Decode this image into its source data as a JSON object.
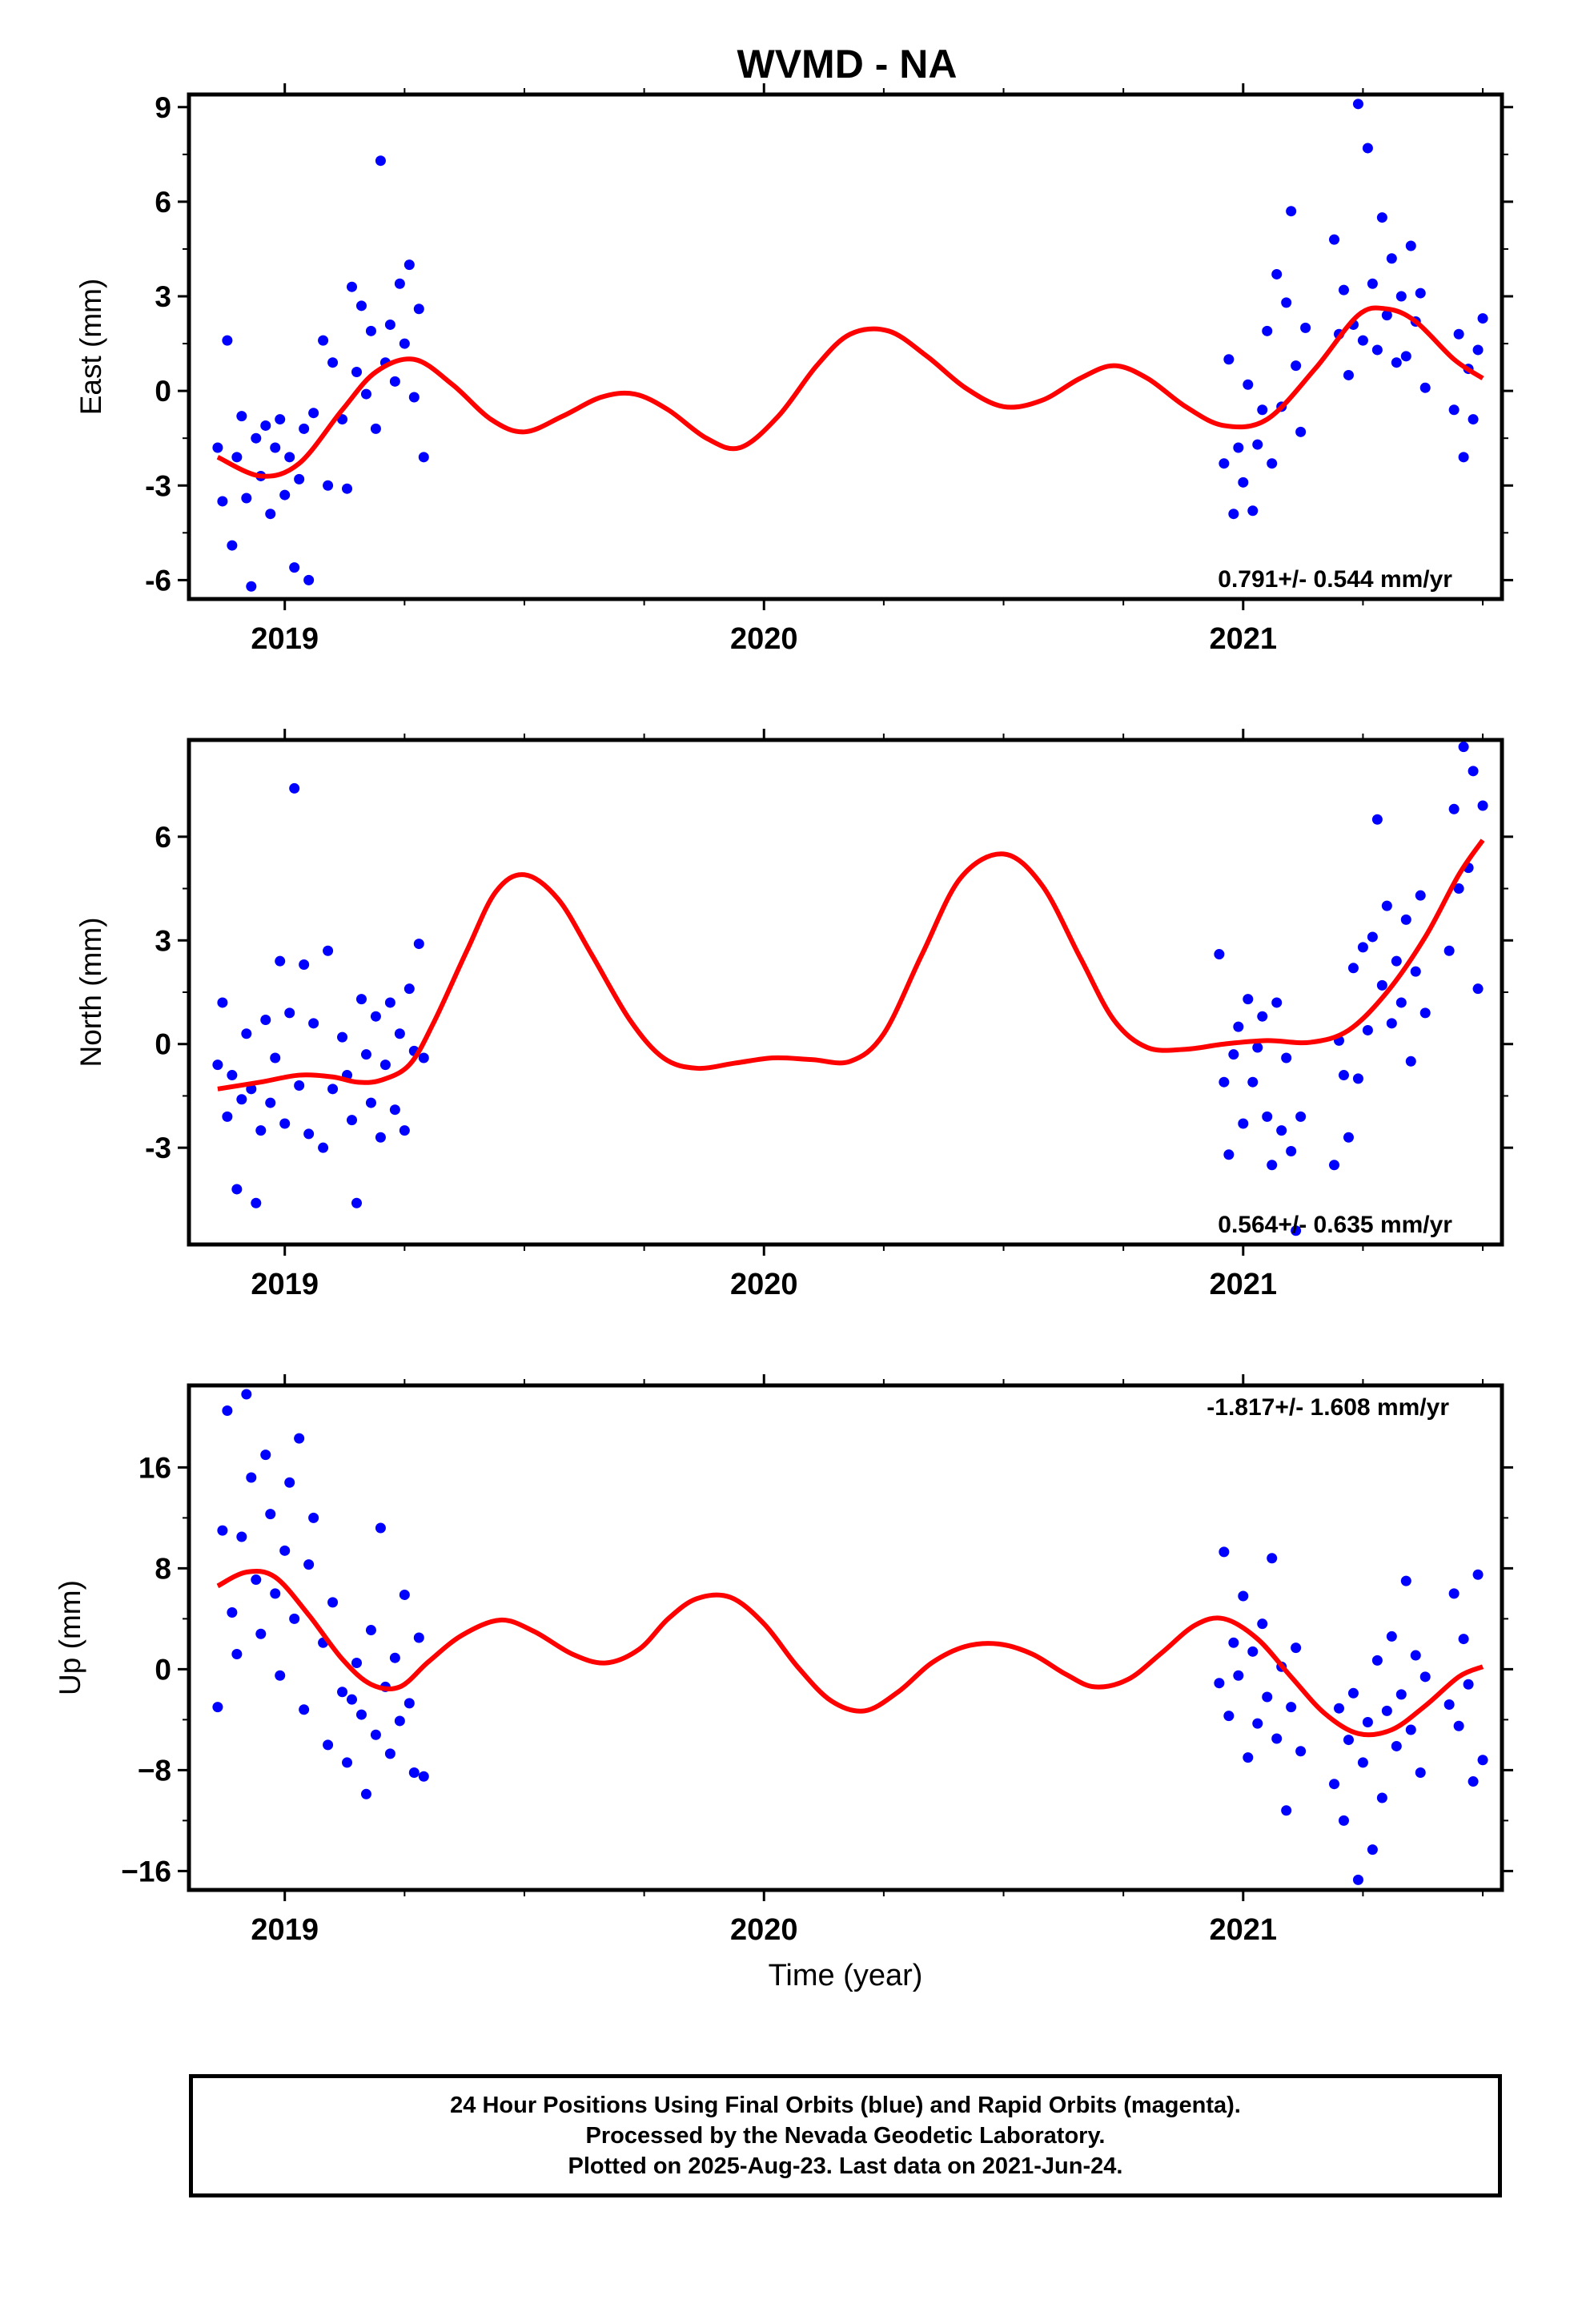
{
  "title": "WVMD - NA",
  "footer": {
    "line1": "24 Hour Positions Using Final Orbits (blue) and Rapid Orbits (magenta).",
    "line2": "Processed by the Nevada Geodetic Laboratory.",
    "line3": "Plotted on 2025-Aug-23. Last data on 2021-Jun-24."
  },
  "colors": {
    "points": "#0000ff",
    "fit": "#ff0000",
    "axes": "#000000"
  },
  "chart_data": [
    {
      "type": "scatter",
      "ylabel": "East (mm)",
      "xlabel": "",
      "rate_label": "0.791+/- 0.544 mm/yr",
      "rate_position": "bottom-right",
      "xlim": [
        2018.8,
        2021.54
      ],
      "ylim": [
        -6.6,
        9.4
      ],
      "xticks": [
        2019,
        2020,
        2021
      ],
      "xtick_labels": [
        "2019",
        "2020",
        "2021"
      ],
      "yticks": [
        -6,
        -3,
        0,
        3,
        6,
        9
      ],
      "ytick_labels": [
        "-6",
        "-3",
        "0",
        "3",
        "6",
        "9"
      ],
      "series": [
        {
          "kind": "points",
          "x": [
            2018.86,
            2018.87,
            2018.88,
            2018.89,
            2018.9,
            2018.91,
            2018.92,
            2018.93,
            2018.94,
            2018.95,
            2018.96,
            2018.97,
            2018.98,
            2018.99,
            2019.0,
            2019.01,
            2019.02,
            2019.03,
            2019.04,
            2019.05,
            2019.06,
            2019.08,
            2019.09,
            2019.1,
            2019.12,
            2019.13,
            2019.14,
            2019.15,
            2019.16,
            2019.17,
            2019.18,
            2019.19,
            2019.2,
            2019.21,
            2019.22,
            2019.23,
            2019.24,
            2019.25,
            2019.26,
            2019.27,
            2019.28,
            2019.29,
            2020.96,
            2020.97,
            2020.98,
            2020.99,
            2021.0,
            2021.01,
            2021.02,
            2021.03,
            2021.04,
            2021.05,
            2021.06,
            2021.07,
            2021.08,
            2021.09,
            2021.1,
            2021.11,
            2021.12,
            2021.13,
            2021.19,
            2021.2,
            2021.21,
            2021.22,
            2021.23,
            2021.24,
            2021.25,
            2021.26,
            2021.27,
            2021.28,
            2021.29,
            2021.3,
            2021.31,
            2021.32,
            2021.33,
            2021.34,
            2021.35,
            2021.36,
            2021.37,
            2021.38,
            2021.44,
            2021.45,
            2021.46,
            2021.47,
            2021.48,
            2021.49,
            2021.5
          ],
          "y": [
            -1.8,
            -3.5,
            1.6,
            -4.9,
            -2.1,
            -0.8,
            -3.4,
            -6.2,
            -1.5,
            -2.7,
            -1.1,
            -3.9,
            -1.8,
            -0.9,
            -3.3,
            -2.1,
            -5.6,
            -2.8,
            -1.2,
            -6.0,
            -0.7,
            1.6,
            -3.0,
            0.9,
            -0.9,
            -3.1,
            3.3,
            0.6,
            2.7,
            -0.1,
            1.9,
            -1.2,
            7.3,
            0.9,
            2.1,
            0.3,
            3.4,
            1.5,
            4.0,
            -0.2,
            2.6,
            -2.1,
            -2.3,
            1.0,
            -3.9,
            -1.8,
            -2.9,
            0.2,
            -3.8,
            -1.7,
            -0.6,
            1.9,
            -2.3,
            3.7,
            -0.5,
            2.8,
            5.7,
            0.8,
            -1.3,
            2.0,
            4.8,
            1.8,
            3.2,
            0.5,
            2.1,
            9.1,
            1.6,
            7.7,
            3.4,
            1.3,
            5.5,
            2.4,
            4.2,
            0.9,
            3.0,
            1.1,
            4.6,
            2.2,
            3.1,
            0.1,
            -0.6,
            1.8,
            -2.1,
            0.7,
            -0.9,
            1.3,
            2.3
          ]
        },
        {
          "kind": "fit",
          "x": [
            2018.86,
            2018.95,
            2019.03,
            2019.12,
            2019.19,
            2019.27,
            2019.35,
            2019.43,
            2019.5,
            2019.58,
            2019.66,
            2019.73,
            2019.8,
            2019.88,
            2019.95,
            2020.03,
            2020.11,
            2020.18,
            2020.26,
            2020.34,
            2020.42,
            2020.5,
            2020.58,
            2020.66,
            2020.73,
            2020.8,
            2020.88,
            2020.96,
            2021.05,
            2021.15,
            2021.24,
            2021.3,
            2021.36,
            2021.44,
            2021.5
          ],
          "y": [
            -2.1,
            -2.7,
            -2.3,
            -0.6,
            0.6,
            1.0,
            0.2,
            -0.9,
            -1.3,
            -0.8,
            -0.2,
            -0.1,
            -0.6,
            -1.5,
            -1.8,
            -0.8,
            0.8,
            1.8,
            1.9,
            1.1,
            0.1,
            -0.5,
            -0.3,
            0.4,
            0.8,
            0.4,
            -0.5,
            -1.1,
            -0.9,
            0.7,
            2.4,
            2.6,
            2.2,
            1.0,
            0.4
          ]
        }
      ]
    },
    {
      "type": "scatter",
      "ylabel": "North (mm)",
      "xlabel": "",
      "rate_label": "0.564+/- 0.635 mm/yr",
      "rate_position": "bottom-right",
      "xlim": [
        2018.8,
        2021.54
      ],
      "ylim": [
        -5.8,
        8.8
      ],
      "xticks": [
        2019,
        2020,
        2021
      ],
      "xtick_labels": [
        "2019",
        "2020",
        "2021"
      ],
      "yticks": [
        -3,
        0,
        3,
        6
      ],
      "ytick_labels": [
        "-3",
        "0",
        "3",
        "6"
      ],
      "series": [
        {
          "kind": "points",
          "x": [
            2018.86,
            2018.87,
            2018.88,
            2018.89,
            2018.9,
            2018.91,
            2018.92,
            2018.93,
            2018.94,
            2018.95,
            2018.96,
            2018.97,
            2018.98,
            2018.99,
            2019.0,
            2019.01,
            2019.02,
            2019.03,
            2019.04,
            2019.05,
            2019.06,
            2019.08,
            2019.09,
            2019.1,
            2019.12,
            2019.13,
            2019.14,
            2019.15,
            2019.16,
            2019.17,
            2019.18,
            2019.19,
            2019.2,
            2019.21,
            2019.22,
            2019.23,
            2019.24,
            2019.25,
            2019.26,
            2019.27,
            2019.28,
            2019.29,
            2020.95,
            2020.96,
            2020.97,
            2020.98,
            2020.99,
            2021.0,
            2021.01,
            2021.02,
            2021.03,
            2021.04,
            2021.05,
            2021.06,
            2021.07,
            2021.08,
            2021.09,
            2021.1,
            2021.11,
            2021.12,
            2021.19,
            2021.2,
            2021.21,
            2021.22,
            2021.23,
            2021.24,
            2021.25,
            2021.26,
            2021.27,
            2021.28,
            2021.29,
            2021.3,
            2021.31,
            2021.32,
            2021.33,
            2021.34,
            2021.35,
            2021.36,
            2021.37,
            2021.38,
            2021.43,
            2021.44,
            2021.45,
            2021.46,
            2021.47,
            2021.48,
            2021.49,
            2021.5
          ],
          "y": [
            -0.6,
            1.2,
            -2.1,
            -0.9,
            -4.2,
            -1.6,
            0.3,
            -1.3,
            -4.6,
            -2.5,
            0.7,
            -1.7,
            -0.4,
            2.4,
            -2.3,
            0.9,
            7.4,
            -1.2,
            2.3,
            -2.6,
            0.6,
            -3.0,
            2.7,
            -1.3,
            0.2,
            -0.9,
            -2.2,
            -4.6,
            1.3,
            -0.3,
            -1.7,
            0.8,
            -2.7,
            -0.6,
            1.2,
            -1.9,
            0.3,
            -2.5,
            1.6,
            -0.2,
            2.9,
            -0.4,
            2.6,
            -1.1,
            -3.2,
            -0.3,
            0.5,
            -2.3,
            1.3,
            -1.1,
            -0.1,
            0.8,
            -2.1,
            -3.5,
            1.2,
            -2.5,
            -0.4,
            -3.1,
            -5.4,
            -2.1,
            -3.5,
            0.1,
            -0.9,
            -2.7,
            2.2,
            -1.0,
            2.8,
            0.4,
            3.1,
            6.5,
            1.7,
            4.0,
            0.6,
            2.4,
            1.2,
            3.6,
            -0.5,
            2.1,
            4.3,
            0.9,
            2.7,
            6.8,
            4.5,
            8.6,
            5.1,
            7.9,
            1.6,
            6.9
          ]
        },
        {
          "kind": "fit",
          "x": [
            2018.86,
            2018.95,
            2019.03,
            2019.1,
            2019.15,
            2019.2,
            2019.26,
            2019.31,
            2019.38,
            2019.44,
            2019.5,
            2019.57,
            2019.64,
            2019.72,
            2019.79,
            2019.86,
            2019.94,
            2020.02,
            2020.1,
            2020.18,
            2020.25,
            2020.33,
            2020.41,
            2020.5,
            2020.58,
            2020.66,
            2020.73,
            2020.8,
            2020.88,
            2020.96,
            2021.05,
            2021.14,
            2021.22,
            2021.3,
            2021.38,
            2021.45,
            2021.5
          ],
          "y": [
            -1.3,
            -1.1,
            -0.9,
            -0.95,
            -1.1,
            -1.05,
            -0.6,
            0.6,
            2.7,
            4.4,
            4.9,
            4.2,
            2.6,
            0.7,
            -0.4,
            -0.7,
            -0.55,
            -0.4,
            -0.45,
            -0.5,
            0.3,
            2.6,
            4.8,
            5.5,
            4.6,
            2.5,
            0.7,
            -0.1,
            -0.15,
            0.0,
            0.1,
            0.05,
            0.4,
            1.5,
            3.1,
            4.9,
            5.9
          ]
        }
      ]
    },
    {
      "type": "scatter",
      "ylabel": "Up (mm)",
      "xlabel": "Time (year)",
      "rate_label": "-1.817+/- 1.608 mm/yr",
      "rate_position": "top-right",
      "xlim": [
        2018.8,
        2021.54
      ],
      "ylim": [
        -17.5,
        22.5
      ],
      "xticks": [
        2019,
        2020,
        2021
      ],
      "xtick_labels": [
        "2019",
        "2020",
        "2021"
      ],
      "yticks": [
        -16,
        -8,
        0,
        8,
        16
      ],
      "ytick_labels": [
        "−16",
        "−8",
        "0",
        "8",
        "16"
      ],
      "series": [
        {
          "kind": "points",
          "x": [
            2018.86,
            2018.87,
            2018.88,
            2018.89,
            2018.9,
            2018.91,
            2018.92,
            2018.93,
            2018.94,
            2018.95,
            2018.96,
            2018.97,
            2018.98,
            2018.99,
            2019.0,
            2019.01,
            2019.02,
            2019.03,
            2019.04,
            2019.05,
            2019.06,
            2019.08,
            2019.09,
            2019.1,
            2019.12,
            2019.13,
            2019.14,
            2019.15,
            2019.16,
            2019.17,
            2019.18,
            2019.19,
            2019.2,
            2019.21,
            2019.22,
            2019.23,
            2019.24,
            2019.25,
            2019.26,
            2019.27,
            2019.28,
            2019.29,
            2020.95,
            2020.96,
            2020.97,
            2020.98,
            2020.99,
            2021.0,
            2021.01,
            2021.02,
            2021.03,
            2021.04,
            2021.05,
            2021.06,
            2021.07,
            2021.08,
            2021.09,
            2021.1,
            2021.11,
            2021.12,
            2021.19,
            2021.2,
            2021.21,
            2021.22,
            2021.23,
            2021.24,
            2021.25,
            2021.26,
            2021.27,
            2021.28,
            2021.29,
            2021.3,
            2021.31,
            2021.32,
            2021.33,
            2021.34,
            2021.35,
            2021.36,
            2021.37,
            2021.38,
            2021.43,
            2021.44,
            2021.45,
            2021.46,
            2021.47,
            2021.48,
            2021.49,
            2021.5
          ],
          "y": [
            -3.0,
            11.0,
            20.5,
            4.5,
            1.2,
            10.5,
            21.8,
            15.2,
            7.1,
            2.8,
            17.0,
            12.3,
            6.0,
            -0.5,
            9.4,
            14.8,
            4.0,
            18.3,
            -3.2,
            8.3,
            12.0,
            2.1,
            -6.0,
            5.3,
            -1.8,
            -7.4,
            -2.4,
            0.5,
            -3.6,
            -9.9,
            3.1,
            -5.2,
            11.2,
            -1.4,
            -6.7,
            0.9,
            -4.1,
            5.9,
            -2.7,
            -8.2,
            2.5,
            -8.5,
            -1.1,
            9.3,
            -3.7,
            2.1,
            -0.5,
            5.8,
            -7.0,
            1.4,
            -4.3,
            3.6,
            -2.2,
            8.8,
            -5.5,
            0.2,
            -11.2,
            -3.0,
            1.7,
            -6.5,
            -9.1,
            -3.1,
            -12.0,
            -5.6,
            -1.9,
            -16.7,
            -7.4,
            -4.2,
            -14.3,
            0.7,
            -10.2,
            -3.3,
            2.6,
            -6.1,
            -2.0,
            7.0,
            -4.8,
            1.1,
            -8.2,
            -0.6,
            -2.8,
            6.0,
            -4.5,
            2.4,
            -1.2,
            -8.9,
            7.5,
            -7.2
          ]
        },
        {
          "kind": "fit",
          "x": [
            2018.86,
            2018.92,
            2018.98,
            2019.05,
            2019.12,
            2019.18,
            2019.24,
            2019.3,
            2019.37,
            2019.45,
            2019.52,
            2019.6,
            2019.67,
            2019.74,
            2019.8,
            2019.86,
            2019.93,
            2020.0,
            2020.07,
            2020.14,
            2020.21,
            2020.28,
            2020.35,
            2020.42,
            2020.49,
            2020.56,
            2020.63,
            2020.69,
            2020.76,
            2020.83,
            2020.9,
            2020.96,
            2021.03,
            2021.1,
            2021.17,
            2021.24,
            2021.31,
            2021.38,
            2021.45,
            2021.5
          ],
          "y": [
            6.6,
            7.7,
            7.3,
            4.3,
            0.8,
            -1.2,
            -1.4,
            0.6,
            2.7,
            3.9,
            3.0,
            1.2,
            0.5,
            1.6,
            4.0,
            5.6,
            5.7,
            3.6,
            0.2,
            -2.5,
            -3.3,
            -1.8,
            0.5,
            1.8,
            2.0,
            1.2,
            -0.4,
            -1.4,
            -0.8,
            1.3,
            3.5,
            4.0,
            2.4,
            -0.6,
            -3.5,
            -5.1,
            -4.8,
            -2.9,
            -0.6,
            0.2
          ]
        }
      ]
    }
  ]
}
